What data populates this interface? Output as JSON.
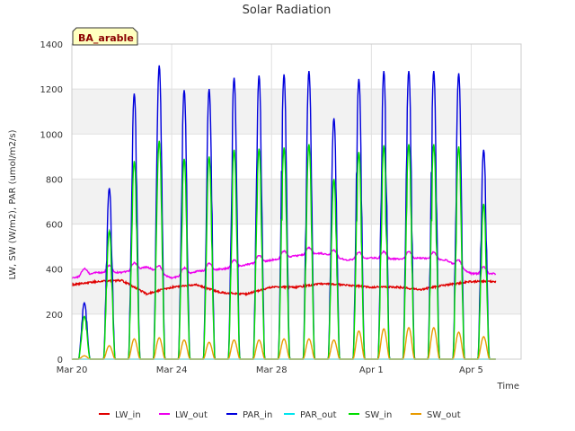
{
  "chart_data": {
    "type": "line",
    "title": "Solar Radiation",
    "xlabel": "Time",
    "ylabel": "LW, SW (W/m2), PAR (umol/m2/s)",
    "badge": "BA_arable",
    "ylim": [
      0,
      1400
    ],
    "xlim": [
      0,
      18
    ],
    "x_unit": "days since Mar 20",
    "yticks": [
      0,
      200,
      400,
      600,
      800,
      1000,
      1200,
      1400
    ],
    "xticks": [
      {
        "value": 0,
        "label": "Mar 20"
      },
      {
        "value": 4,
        "label": "Mar 24"
      },
      {
        "value": 8,
        "label": "Mar 28"
      },
      {
        "value": 12,
        "label": "Apr 1"
      },
      {
        "value": 16,
        "label": "Apr 5"
      }
    ],
    "shaded_bands": [
      [
        200,
        400
      ],
      [
        600,
        800
      ],
      [
        1000,
        1200
      ]
    ],
    "legend_position": "bottom",
    "series": [
      {
        "name": "LW_in",
        "color": "#e00000"
      },
      {
        "name": "LW_out",
        "color": "#ee00ee"
      },
      {
        "name": "PAR_in",
        "color": "#0000dd"
      },
      {
        "name": "PAR_out",
        "color": "#00e5ee"
      },
      {
        "name": "SW_in",
        "color": "#00dd00"
      },
      {
        "name": "SW_out",
        "color": "#e89b00"
      }
    ],
    "daily": [
      {
        "day": 0,
        "par_peak": 250,
        "sw_peak": 190,
        "sw_out_peak": 15,
        "lw_in": 330,
        "lw_out": 360
      },
      {
        "day": 1,
        "par_peak": 760,
        "sw_peak": 570,
        "sw_out_peak": 60,
        "lw_in": 345,
        "lw_out": 385
      },
      {
        "day": 2,
        "par_peak": 1180,
        "sw_peak": 880,
        "sw_out_peak": 90,
        "lw_in": 350,
        "lw_out": 385
      },
      {
        "day": 3,
        "par_peak": 1305,
        "sw_peak": 970,
        "sw_out_peak": 95,
        "lw_in": 290,
        "lw_out": 410
      },
      {
        "day": 4,
        "par_peak": 1195,
        "sw_peak": 890,
        "sw_out_peak": 85,
        "lw_in": 320,
        "lw_out": 360
      },
      {
        "day": 5,
        "par_peak": 1200,
        "sw_peak": 900,
        "sw_out_peak": 75,
        "lw_in": 330,
        "lw_out": 390
      },
      {
        "day": 6,
        "par_peak": 1250,
        "sw_peak": 930,
        "sw_out_peak": 85,
        "lw_in": 295,
        "lw_out": 400
      },
      {
        "day": 7,
        "par_peak": 1260,
        "sw_peak": 935,
        "sw_out_peak": 85,
        "lw_in": 290,
        "lw_out": 420
      },
      {
        "day": 8,
        "par_peak": 1265,
        "sw_peak": 940,
        "sw_out_peak": 90,
        "lw_in": 320,
        "lw_out": 440
      },
      {
        "day": 9,
        "par_peak": 1280,
        "sw_peak": 955,
        "sw_out_peak": 90,
        "lw_in": 320,
        "lw_out": 460
      },
      {
        "day": 10,
        "par_peak": 1070,
        "sw_peak": 800,
        "sw_out_peak": 85,
        "lw_in": 335,
        "lw_out": 470
      },
      {
        "day": 11,
        "par_peak": 1245,
        "sw_peak": 920,
        "sw_out_peak": 125,
        "lw_in": 330,
        "lw_out": 440
      },
      {
        "day": 12,
        "par_peak": 1280,
        "sw_peak": 950,
        "sw_out_peak": 135,
        "lw_in": 320,
        "lw_out": 450
      },
      {
        "day": 13,
        "par_peak": 1280,
        "sw_peak": 955,
        "sw_out_peak": 140,
        "lw_in": 320,
        "lw_out": 445
      },
      {
        "day": 14,
        "par_peak": 1280,
        "sw_peak": 955,
        "sw_out_peak": 140,
        "lw_in": 310,
        "lw_out": 450
      },
      {
        "day": 15,
        "par_peak": 1270,
        "sw_peak": 945,
        "sw_out_peak": 120,
        "lw_in": 330,
        "lw_out": 440
      },
      {
        "day": 16,
        "par_peak": 930,
        "sw_peak": 690,
        "sw_out_peak": 100,
        "lw_in": 345,
        "lw_out": 380
      }
    ]
  }
}
